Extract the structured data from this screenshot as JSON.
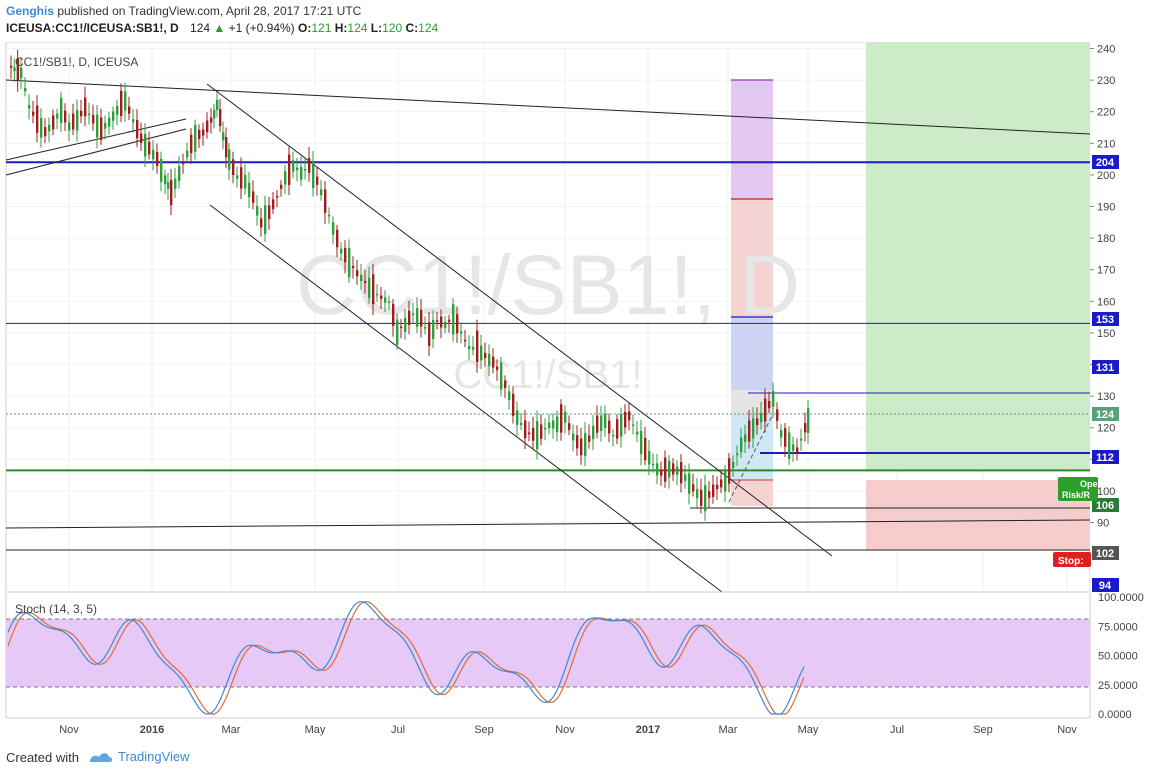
{
  "header": {
    "author": "Genghis",
    "published": "published on TradingView.com, April 28, 2017 17:21 UTC",
    "symbol": "ICEUSA:CC1!/ICEUSA:SB1!, D",
    "last": "124",
    "change": "+1 (+0.94%)",
    "o_label": "O:",
    "o_value": "121",
    "h_label": "H:",
    "h_value": "124",
    "l_label": "L:",
    "l_value": "120",
    "c_label": "C:",
    "c_value": "124"
  },
  "footer": {
    "created": "Created with",
    "brand": "TradingView"
  },
  "colors": {
    "up": "#2e9e3e",
    "down": "#a11d1d",
    "blue_line": "#1a1ac8",
    "green_line": "#2a8a2a",
    "stoch_k": "#3a8bd8",
    "stoch_d": "#e06b3a"
  },
  "chart_data": [
    {
      "type": "candlestick",
      "title": "CC1!/SB1!, D, ICEUSA",
      "watermark": "CC1!/SB1!, D",
      "watermark2": "CC1!/SB1!",
      "x_tick_labels": [
        "Nov",
        "2016",
        "Mar",
        "May",
        "Jul",
        "Sep",
        "Nov",
        "2017",
        "Mar",
        "May",
        "Jul",
        "Sep",
        "Nov"
      ],
      "y_tick_labels": [
        "240",
        "230",
        "220",
        "210",
        "200",
        "190",
        "180",
        "170",
        "160",
        "150",
        "140",
        "130",
        "120",
        "110",
        "100",
        "90"
      ],
      "ylim": [
        87,
        242
      ],
      "last_price": 124,
      "price_tags": [
        {
          "label": "204",
          "value": 204,
          "color": "#1a1ac8"
        },
        {
          "label": "153",
          "value": 153,
          "color": "#1a1ac8"
        },
        {
          "label": "131",
          "value": 131,
          "color": "#1a1ac8"
        },
        {
          "label": "124",
          "value": 124,
          "color": "#5aa07a"
        },
        {
          "label": "112",
          "value": 112,
          "color": "#1a1ac8"
        },
        {
          "label": "106",
          "value": 106,
          "color": "#2a7a3a"
        },
        {
          "label": "102",
          "value": 102,
          "color": "#555555"
        },
        {
          "label": "94",
          "value": 94,
          "color": "#1a1ac8"
        }
      ],
      "horizontal_levels": [
        204,
        153,
        131,
        112,
        108,
        94
      ],
      "position_labels": {
        "target": "Open",
        "target2": "Risk/R",
        "stop": "Stop:"
      }
    },
    {
      "type": "line",
      "title": "Stoch (14, 3, 5)",
      "y_tick_labels": [
        "100.0000",
        "75.0000",
        "50.0000",
        "25.0000",
        "0.0000"
      ],
      "ylim": [
        0,
        100
      ],
      "band": [
        20,
        80
      ]
    }
  ]
}
